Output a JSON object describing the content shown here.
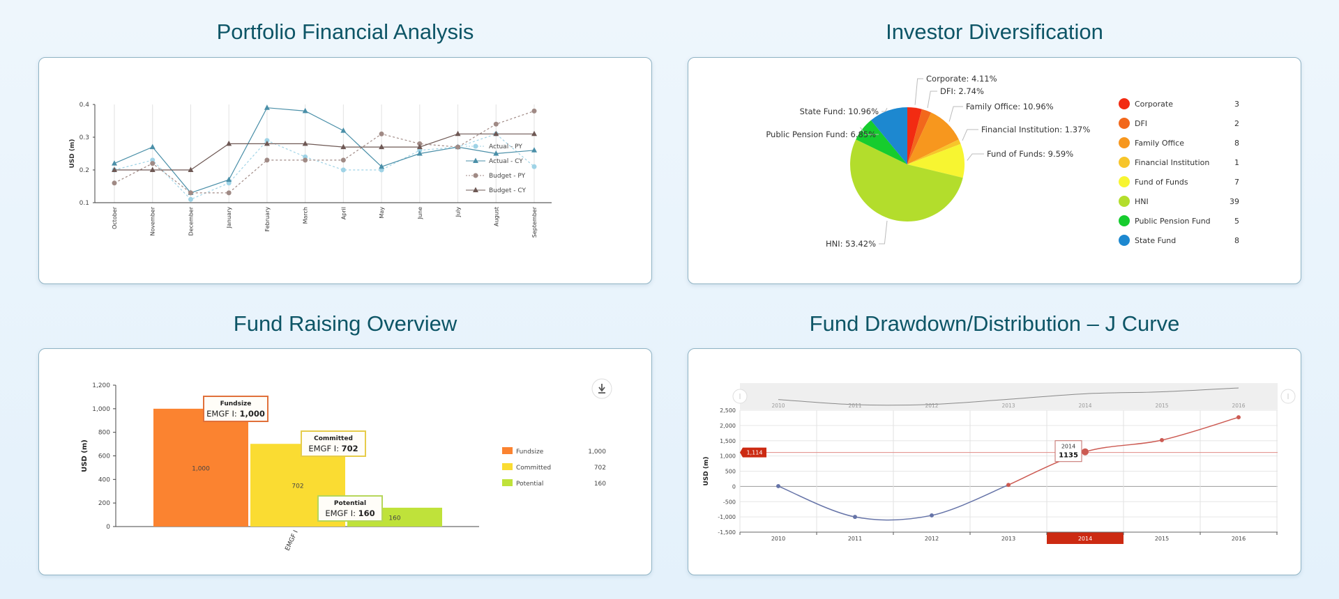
{
  "panels": {
    "portfolio": {
      "title": "Portfolio Financial Analysis"
    },
    "investor": {
      "title": "Investor Diversification"
    },
    "fundraising": {
      "title": "Fund Raising Overview"
    },
    "jcurve": {
      "title": "Fund Drawdown/Distribution – J Curve"
    }
  },
  "chart_data": [
    {
      "type": "line",
      "ylabel": "USD (m)",
      "ylim": [
        0.1,
        0.4
      ],
      "yticks": [
        "0.1",
        "0.2",
        "0.3",
        "0.4"
      ],
      "grid": "vertical",
      "legend": "right",
      "categories": [
        "October",
        "November",
        "December",
        "January",
        "February",
        "March",
        "April",
        "May",
        "June",
        "July",
        "August",
        "September"
      ],
      "series": [
        {
          "name": "Actual - PY",
          "color": "#9fd3e6",
          "dash": true,
          "marker": "circle",
          "values": [
            0.2,
            0.23,
            0.11,
            0.16,
            0.29,
            0.24,
            0.2,
            0.2,
            0.26,
            0.27,
            0.31,
            0.21
          ]
        },
        {
          "name": "Actual - CY",
          "color": "#4a8fa8",
          "dash": false,
          "marker": "triangle",
          "values": [
            0.22,
            0.27,
            0.13,
            0.17,
            0.39,
            0.38,
            0.32,
            0.21,
            0.25,
            0.27,
            0.25,
            0.26
          ]
        },
        {
          "name": "Budget - PY",
          "color": "#a08a85",
          "dash": true,
          "marker": "circle",
          "values": [
            0.16,
            0.22,
            0.13,
            0.13,
            0.23,
            0.23,
            0.23,
            0.31,
            0.28,
            0.27,
            0.34,
            0.38
          ]
        },
        {
          "name": "Budget - CY",
          "color": "#6e5854",
          "dash": false,
          "marker": "triangle",
          "values": [
            0.2,
            0.2,
            0.2,
            0.28,
            0.28,
            0.28,
            0.27,
            0.27,
            0.27,
            0.31,
            0.31,
            0.31
          ]
        }
      ]
    },
    {
      "type": "pie",
      "legend": "right",
      "slices": [
        {
          "name": "Corporate",
          "value": 3,
          "label": "Corporate: 4.11%",
          "color": "#f22b12"
        },
        {
          "name": "DFI",
          "value": 2,
          "label": "DFI: 2.74%",
          "color": "#f2681c"
        },
        {
          "name": "Family Office",
          "value": 8,
          "label": "Family Office: 10.96%",
          "color": "#f7971e"
        },
        {
          "name": "Financial Institution",
          "value": 1,
          "label": "Financial Institution: 1.37%",
          "color": "#f7c52a"
        },
        {
          "name": "Fund of Funds",
          "value": 7,
          "label": "Fund of Funds: 9.59%",
          "color": "#f7f531"
        },
        {
          "name": "HNI",
          "value": 39,
          "label": "HNI: 53.42%",
          "color": "#b3dd2c"
        },
        {
          "name": "Public Pension Fund",
          "value": 5,
          "label": "Public Pension Fund: 6.85%",
          "color": "#16cc2e"
        },
        {
          "name": "State Fund",
          "value": 8,
          "label": "State Fund: 10.96%",
          "color": "#1d88d0"
        }
      ]
    },
    {
      "type": "bar",
      "ylabel": "USD (m)",
      "ylim": [
        0,
        1200
      ],
      "yticks": [
        "0",
        "200",
        "400",
        "600",
        "800",
        "1,000",
        "1,200"
      ],
      "categories": [
        "EMGF I"
      ],
      "legend": "right",
      "series": [
        {
          "name": "Fundsize",
          "value": 1000,
          "label": "1,000",
          "color": "#fb8330",
          "tooltip_border": "#e0703a",
          "tooltip_prefix": "EMGF I: "
        },
        {
          "name": "Committed",
          "value": 702,
          "label": "702",
          "color": "#fadc32",
          "tooltip_border": "#e6cc4a",
          "tooltip_prefix": "EMGF I: "
        },
        {
          "name": "Potential",
          "value": 160,
          "label": "160",
          "color": "#bfe23a",
          "tooltip_border": "#b6d65a",
          "tooltip_prefix": "EMGF I: "
        }
      ],
      "download_icon": "download-icon"
    },
    {
      "type": "line",
      "ylabel": "USD (m)",
      "ylim": [
        -1500,
        2500
      ],
      "yticks": [
        "-1,500",
        "-1,000",
        "-500",
        "0",
        "500",
        "1,000",
        "1,500",
        "2,000",
        "2,500"
      ],
      "categories": [
        "2010",
        "2011",
        "2012",
        "2013",
        "2014",
        "2015",
        "2016"
      ],
      "values": [
        10,
        -1000,
        -950,
        50,
        1135,
        1520,
        2270
      ],
      "negative_color": "#6674a8",
      "positive_color": "#cc5a52",
      "crosshair_value": "1,114",
      "selected_category": "2014",
      "tooltip": {
        "category": "2014",
        "value": "1135"
      },
      "grid": true
    }
  ]
}
